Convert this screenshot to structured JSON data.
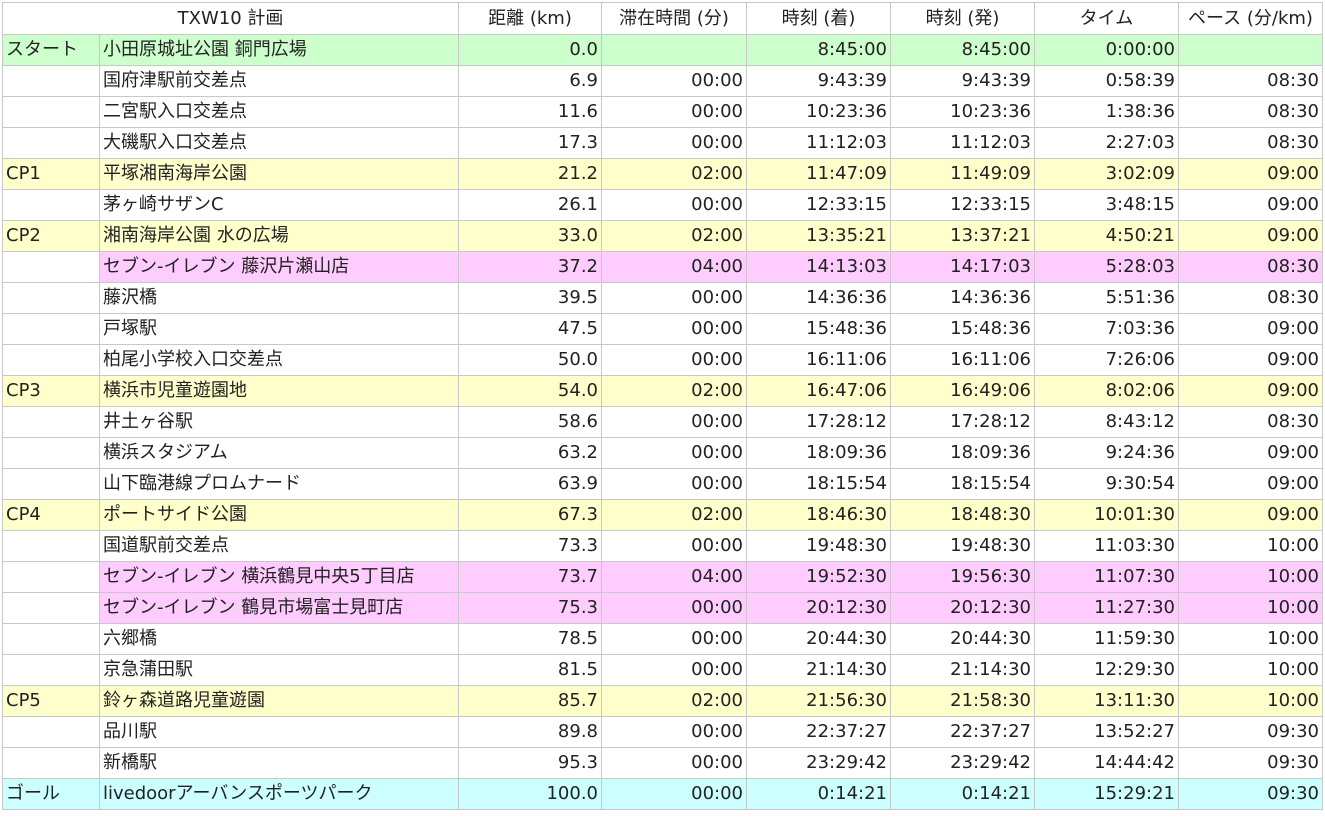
{
  "sheet": {
    "header": {
      "plan": "TXW10 計画",
      "distance": "距離 (km)",
      "stay": "滞在時間 (分)",
      "arrive": "時刻 (着)",
      "depart": "時刻 (発)",
      "time": "タイム",
      "pace": "ペース (分/km)"
    },
    "rows": [
      {
        "type": "start",
        "label": "スタート",
        "name": "小田原城址公園 銅門広場",
        "dist": "0.0",
        "stay": "",
        "arr": "8:45:00",
        "dep": "8:45:00",
        "time": "0:00:00",
        "pace": ""
      },
      {
        "type": "normal",
        "label": "",
        "name": "国府津駅前交差点",
        "dist": "6.9",
        "stay": "00:00",
        "arr": "9:43:39",
        "dep": "9:43:39",
        "time": "0:58:39",
        "pace": "08:30"
      },
      {
        "type": "normal",
        "label": "",
        "name": "二宮駅入口交差点",
        "dist": "11.6",
        "stay": "00:00",
        "arr": "10:23:36",
        "dep": "10:23:36",
        "time": "1:38:36",
        "pace": "08:30"
      },
      {
        "type": "normal",
        "label": "",
        "name": "大磯駅入口交差点",
        "dist": "17.3",
        "stay": "00:00",
        "arr": "11:12:03",
        "dep": "11:12:03",
        "time": "2:27:03",
        "pace": "08:30"
      },
      {
        "type": "cp",
        "label": "CP1",
        "name": "平塚湘南海岸公園",
        "dist": "21.2",
        "stay": "02:00",
        "arr": "11:47:09",
        "dep": "11:49:09",
        "time": "3:02:09",
        "pace": "09:00"
      },
      {
        "type": "normal",
        "label": "",
        "name": "茅ヶ崎サザンC",
        "dist": "26.1",
        "stay": "00:00",
        "arr": "12:33:15",
        "dep": "12:33:15",
        "time": "3:48:15",
        "pace": "09:00"
      },
      {
        "type": "cp",
        "label": "CP2",
        "name": "湘南海岸公園 水の広場",
        "dist": "33.0",
        "stay": "02:00",
        "arr": "13:35:21",
        "dep": "13:37:21",
        "time": "4:50:21",
        "pace": "09:00"
      },
      {
        "type": "store",
        "label": "",
        "name": "セブン-イレブン 藤沢片瀬山店",
        "dist": "37.2",
        "stay": "04:00",
        "arr": "14:13:03",
        "dep": "14:17:03",
        "time": "5:28:03",
        "pace": "08:30"
      },
      {
        "type": "normal",
        "label": "",
        "name": "藤沢橋",
        "dist": "39.5",
        "stay": "00:00",
        "arr": "14:36:36",
        "dep": "14:36:36",
        "time": "5:51:36",
        "pace": "08:30"
      },
      {
        "type": "normal",
        "label": "",
        "name": "戸塚駅",
        "dist": "47.5",
        "stay": "00:00",
        "arr": "15:48:36",
        "dep": "15:48:36",
        "time": "7:03:36",
        "pace": "09:00"
      },
      {
        "type": "normal",
        "label": "",
        "name": "柏尾小学校入口交差点",
        "dist": "50.0",
        "stay": "00:00",
        "arr": "16:11:06",
        "dep": "16:11:06",
        "time": "7:26:06",
        "pace": "09:00"
      },
      {
        "type": "cp",
        "label": "CP3",
        "name": "横浜市児童遊園地",
        "dist": "54.0",
        "stay": "02:00",
        "arr": "16:47:06",
        "dep": "16:49:06",
        "time": "8:02:06",
        "pace": "09:00"
      },
      {
        "type": "normal",
        "label": "",
        "name": "井土ヶ谷駅",
        "dist": "58.6",
        "stay": "00:00",
        "arr": "17:28:12",
        "dep": "17:28:12",
        "time": "8:43:12",
        "pace": "08:30"
      },
      {
        "type": "normal",
        "label": "",
        "name": "横浜スタジアム",
        "dist": "63.2",
        "stay": "00:00",
        "arr": "18:09:36",
        "dep": "18:09:36",
        "time": "9:24:36",
        "pace": "09:00"
      },
      {
        "type": "normal",
        "label": "",
        "name": "山下臨港線プロムナード",
        "dist": "63.9",
        "stay": "00:00",
        "arr": "18:15:54",
        "dep": "18:15:54",
        "time": "9:30:54",
        "pace": "09:00"
      },
      {
        "type": "cp",
        "label": "CP4",
        "name": "ポートサイド公園",
        "dist": "67.3",
        "stay": "02:00",
        "arr": "18:46:30",
        "dep": "18:48:30",
        "time": "10:01:30",
        "pace": "09:00"
      },
      {
        "type": "normal",
        "label": "",
        "name": "国道駅前交差点",
        "dist": "73.3",
        "stay": "00:00",
        "arr": "19:48:30",
        "dep": "19:48:30",
        "time": "11:03:30",
        "pace": "10:00"
      },
      {
        "type": "store",
        "label": "",
        "name": "セブン-イレブン 横浜鶴見中央5丁目店",
        "dist": "73.7",
        "stay": "04:00",
        "arr": "19:52:30",
        "dep": "19:56:30",
        "time": "11:07:30",
        "pace": "10:00"
      },
      {
        "type": "store",
        "label": "",
        "name": "セブン-イレブン 鶴見市場富士見町店",
        "dist": "75.3",
        "stay": "00:00",
        "arr": "20:12:30",
        "dep": "20:12:30",
        "time": "11:27:30",
        "pace": "10:00"
      },
      {
        "type": "normal",
        "label": "",
        "name": "六郷橋",
        "dist": "78.5",
        "stay": "00:00",
        "arr": "20:44:30",
        "dep": "20:44:30",
        "time": "11:59:30",
        "pace": "10:00"
      },
      {
        "type": "normal",
        "label": "",
        "name": "京急蒲田駅",
        "dist": "81.5",
        "stay": "00:00",
        "arr": "21:14:30",
        "dep": "21:14:30",
        "time": "12:29:30",
        "pace": "10:00"
      },
      {
        "type": "cp",
        "label": "CP5",
        "name": "鈴ヶ森道路児童遊園",
        "dist": "85.7",
        "stay": "02:00",
        "arr": "21:56:30",
        "dep": "21:58:30",
        "time": "13:11:30",
        "pace": "10:00"
      },
      {
        "type": "normal",
        "label": "",
        "name": "品川駅",
        "dist": "89.8",
        "stay": "00:00",
        "arr": "22:37:27",
        "dep": "22:37:27",
        "time": "13:52:27",
        "pace": "09:30"
      },
      {
        "type": "normal",
        "label": "",
        "name": "新橋駅",
        "dist": "95.3",
        "stay": "00:00",
        "arr": "23:29:42",
        "dep": "23:29:42",
        "time": "14:44:42",
        "pace": "09:30"
      },
      {
        "type": "goal",
        "label": "ゴール",
        "name": "livedoorアーバンスポーツパーク",
        "dist": "100.0",
        "stay": "00:00",
        "arr": "0:14:21",
        "dep": "0:14:21",
        "time": "15:29:21",
        "pace": "09:30"
      }
    ]
  }
}
